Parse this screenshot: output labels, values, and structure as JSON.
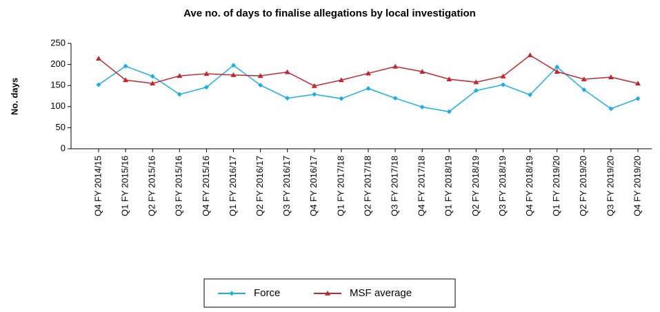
{
  "chart_data": {
    "type": "line",
    "title": "Ave no. of days to finalise allegations by local investigation",
    "y_label": "No. days",
    "categories": [
      "Q4 FY 2014/15",
      "Q1 FY 2015/16",
      "Q2 FY 2015/16",
      "Q3 FY 2015/16",
      "Q4 FY 2015/16",
      "Q1 FY 2016/17",
      "Q2 FY 2016/17",
      "Q3 FY 2016/17",
      "Q4 FY 2016/17",
      "Q1 FY 2017/18",
      "Q2 FY 2017/18",
      "Q3 FY 2017/18",
      "Q4 FY 2017/18",
      "Q1 FY 2018/19",
      "Q2 FY 2018/19",
      "Q3 FY 2018/19",
      "Q4 FY 2018/19",
      "Q1 FY 2019/20",
      "Q2 FY 2019/20",
      "Q3 FY 2019/20",
      "Q4 FY 2019/20"
    ],
    "series": [
      {
        "name": "Force",
        "color": "#1aaee6",
        "marker": "diamond",
        "values": [
          152,
          196,
          172,
          129,
          146,
          198,
          151,
          120,
          129,
          119,
          143,
          120,
          99,
          88,
          138,
          152,
          128,
          194,
          140,
          95,
          119
        ]
      },
      {
        "name": "MSF average",
        "color": "#c0282d",
        "marker": "triangle",
        "values": [
          214,
          163,
          155,
          173,
          178,
          175,
          173,
          182,
          149,
          163,
          179,
          195,
          183,
          165,
          158,
          172,
          222,
          183,
          165,
          170,
          155
        ]
      }
    ],
    "ylim": [
      0,
      250
    ],
    "yticks": [
      0,
      50,
      100,
      150,
      200,
      250
    ],
    "legend": "bottom"
  }
}
